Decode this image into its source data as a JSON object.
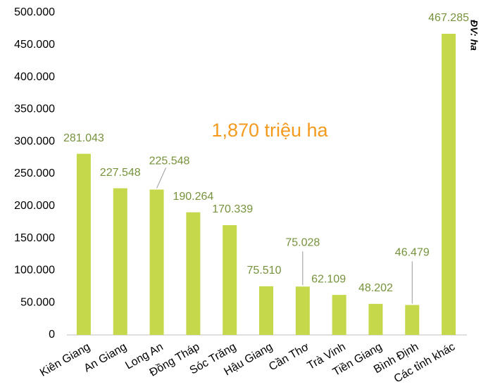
{
  "chart_data": {
    "type": "bar",
    "annotation": "1,870 triệu ha",
    "unit_label": "ĐV: ha",
    "categories": [
      "Kiên Giang",
      "An Giang",
      "Long An",
      "Đồng Tháp",
      "Sóc Trăng",
      "Hậu Giang",
      "Cần Thơ",
      "Trà Vinh",
      "Tiền Giang",
      "Bình Định",
      "Các tỉnh khác"
    ],
    "values": [
      281043,
      227548,
      225548,
      190264,
      170339,
      75510,
      75028,
      62109,
      48202,
      46479,
      467285
    ],
    "value_labels": [
      "281.043",
      "227.548",
      "225.548",
      "190.264",
      "170.339",
      "75.510",
      "75.028",
      "62.109",
      "48.202",
      "46.479",
      "467.285"
    ],
    "color": "#c5d84b",
    "ylim": [
      0,
      500000
    ],
    "yticks": [
      0,
      {
        "value": 50000,
        "label": "50.000"
      },
      {
        "value": 100000,
        "label": "100.000"
      },
      {
        "value": 150000,
        "label": "150.000"
      },
      {
        "value": 200000,
        "label": "200.000"
      },
      {
        "value": 250000,
        "label": "250.000"
      },
      {
        "value": 300000,
        "label": "300.000"
      },
      {
        "value": 350000,
        "label": "350.000"
      },
      {
        "value": 400000,
        "label": "400.000"
      },
      {
        "value": 450000,
        "label": "450.000"
      },
      {
        "value": 500000,
        "label": "500.000"
      }
    ],
    "grid": false
  }
}
